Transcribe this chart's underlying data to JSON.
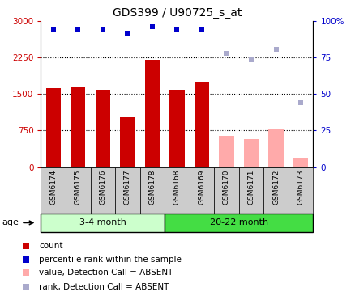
{
  "title": "GDS399 / U90725_s_at",
  "samples": [
    "GSM6174",
    "GSM6175",
    "GSM6176",
    "GSM6177",
    "GSM6178",
    "GSM6168",
    "GSM6169",
    "GSM6170",
    "GSM6171",
    "GSM6172",
    "GSM6173"
  ],
  "count_values": [
    1620,
    1630,
    1590,
    1020,
    2200,
    1590,
    1760,
    null,
    null,
    null,
    null
  ],
  "count_absent": [
    null,
    null,
    null,
    null,
    null,
    null,
    null,
    650,
    570,
    770,
    195
  ],
  "rank_values": [
    2820,
    2820,
    2820,
    2740,
    2870,
    2820,
    2820,
    null,
    null,
    null,
    null
  ],
  "rank_absent": [
    null,
    null,
    null,
    null,
    null,
    null,
    null,
    2330,
    2200,
    2410,
    1320
  ],
  "count_color": "#cc0000",
  "count_absent_color": "#ffaaaa",
  "rank_color": "#0000cc",
  "rank_absent_color": "#aaaacc",
  "ylim_left": [
    0,
    3000
  ],
  "ylim_right": [
    0,
    100
  ],
  "yticks_left": [
    0,
    750,
    1500,
    2250,
    3000
  ],
  "yticks_right": [
    0,
    25,
    50,
    75,
    100
  ],
  "grid_values": [
    750,
    1500,
    2250
  ],
  "group1_color": "#ccffcc",
  "group2_color": "#44dd44",
  "group1_label": "3-4 month",
  "group2_label": "20-22 month",
  "group1_count": 5,
  "group2_count": 6,
  "tick_area_color": "#cccccc",
  "legend_items": [
    [
      "#cc0000",
      "count"
    ],
    [
      "#0000cc",
      "percentile rank within the sample"
    ],
    [
      "#ffaaaa",
      "value, Detection Call = ABSENT"
    ],
    [
      "#aaaacc",
      "rank, Detection Call = ABSENT"
    ]
  ]
}
